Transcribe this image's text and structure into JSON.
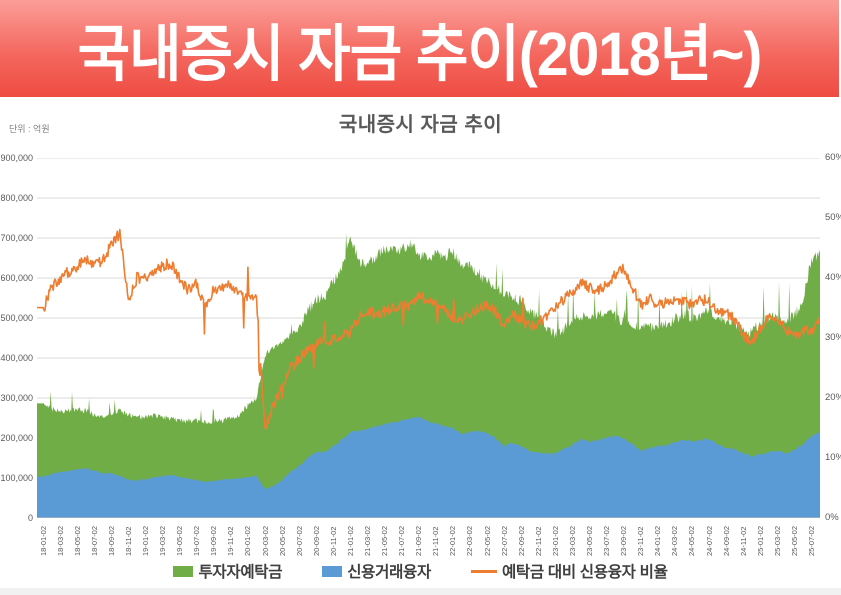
{
  "banner": {
    "title": "국내증시 자금 추이(2018년~)"
  },
  "chart": {
    "title": "국내증시 자금 추이",
    "unit_label": "단위 : 억원"
  },
  "colors": {
    "deposit_green": "#70AD47",
    "loan_blue": "#5B9BD5",
    "ratio_orange": "#ED7D31",
    "gridline": "#D9D9D9",
    "axis_line": "#BFBFBF",
    "banner_red_top": "#FB9E98",
    "banner_red_bottom": "#EE4C42"
  },
  "legend": {
    "items": [
      {
        "label": "투자자예탁금",
        "marker": "square",
        "color": "#70AD47"
      },
      {
        "label": "신용거래융자",
        "marker": "square",
        "color": "#5B9BD5"
      },
      {
        "label": "예탁금 대비 신용융자 비율",
        "marker": "line",
        "color": "#ED7D31"
      }
    ]
  },
  "chart_data": {
    "type": "area",
    "note": "daily stacked-look area chart approximated by monthly anchor values; values in 억원 (left axis) and % (right axis)",
    "x_monthly_labels_start": "2018-01",
    "x_monthly_labels_end": "2025-08",
    "left_axis": {
      "min": 0,
      "max": 900000,
      "step": 100000,
      "ticks": [
        "0",
        "100,000",
        "200,000",
        "300,000",
        "400,000",
        "500,000",
        "600,000",
        "700,000",
        "800,000",
        "900,000"
      ]
    },
    "right_axis": {
      "min": 0,
      "max": 60,
      "step": 10,
      "ticks": [
        "0%",
        "10%",
        "20%",
        "30%",
        "40%",
        "50%",
        "60%"
      ]
    },
    "x_ticks": [
      "18-01-02",
      "18-03-02",
      "18-05-02",
      "18-07-02",
      "18-09-02",
      "18-11-02",
      "19-01-02",
      "19-03-02",
      "19-05-02",
      "19-07-02",
      "19-09-02",
      "19-11-02",
      "20-01-02",
      "20-03-02",
      "20-05-02",
      "20-07-02",
      "20-09-02",
      "20-11-02",
      "21-01-02",
      "21-03-02",
      "21-05-02",
      "21-07-02",
      "21-09-02",
      "21-11-02",
      "22-01-02",
      "22-03-02",
      "22-05-02",
      "22-07-02",
      "22-09-02",
      "22-11-02",
      "23-01-02",
      "23-03-02",
      "23-05-02",
      "23-07-02",
      "23-09-02",
      "23-11-02",
      "24-01-02",
      "24-03-02",
      "24-05-02",
      "24-07-02",
      "24-09-02",
      "24-11-02",
      "25-01-02",
      "25-03-02",
      "25-05-02",
      "25-07-02"
    ],
    "series": [
      {
        "name": "투자자예탁금",
        "type": "area",
        "axis": "left",
        "color": "#70AD47",
        "values": [
          285000,
          272000,
          268000,
          268000,
          273000,
          268000,
          258000,
          254000,
          263000,
          268000,
          258000,
          252000,
          253000,
          258000,
          253000,
          248000,
          244000,
          243000,
          244000,
          238000,
          243000,
          244000,
          249000,
          258000,
          283000,
          298000,
          408000,
          428000,
          438000,
          458000,
          472000,
          518000,
          548000,
          553000,
          593000,
          628000,
          698000,
          643000,
          633000,
          658000,
          668000,
          678000,
          673000,
          688000,
          658000,
          648000,
          663000,
          653000,
          668000,
          628000,
          628000,
          613000,
          588000,
          578000,
          558000,
          553000,
          543000,
          518000,
          503000,
          478000,
          458000,
          473000,
          488000,
          508000,
          498000,
          508000,
          513000,
          503000,
          493000,
          478000,
          475000,
          478000,
          480000,
          488000,
          498000,
          508000,
          503000,
          508000,
          523000,
          503000,
          493000,
          488000,
          468000,
          465000,
          487000,
          498000,
          503000,
          494000,
          505000,
          545000,
          648000,
          662000
        ]
      },
      {
        "name": "신용거래융자",
        "type": "area",
        "axis": "left",
        "color": "#5B9BD5",
        "values": [
          104000,
          110000,
          115000,
          118000,
          122000,
          125000,
          118000,
          112000,
          112000,
          105000,
          95000,
          94000,
          97000,
          102000,
          105000,
          107000,
          103000,
          98000,
          95000,
          90000,
          93000,
          95000,
          97000,
          99000,
          102000,
          105000,
          72000,
          80000,
          95000,
          115000,
          130000,
          152000,
          165000,
          165000,
          180000,
          195000,
          215000,
          218000,
          222000,
          230000,
          235000,
          240000,
          244000,
          250000,
          252000,
          242000,
          238000,
          230000,
          225000,
          210000,
          215000,
          218000,
          212000,
          200000,
          180000,
          188000,
          180000,
          168000,
          165000,
          162000,
          162000,
          172000,
          183000,
          198000,
          192000,
          195000,
          200000,
          205000,
          200000,
          185000,
          168000,
          175000,
          179000,
          183000,
          190000,
          195000,
          192000,
          195000,
          198000,
          185000,
          175000,
          172000,
          162000,
          155000,
          158000,
          165000,
          170000,
          162000,
          170000,
          185000,
          205000,
          215000
        ]
      },
      {
        "name": "예탁금 대비 신용융자 비율",
        "type": "line",
        "axis": "right",
        "color": "#ED7D31",
        "values": [
          34.5,
          38.5,
          40,
          41,
          42,
          43,
          42,
          43,
          45.5,
          47.5,
          36,
          40,
          40,
          41,
          42,
          42.5,
          40,
          38,
          39,
          35,
          38,
          38.5,
          39,
          37,
          37,
          36.5,
          14.5,
          19,
          22,
          25,
          26.5,
          28,
          29,
          29.5,
          30,
          30.5,
          31,
          33.5,
          34.5,
          34,
          34.5,
          35,
          35.5,
          35.5,
          37,
          36.5,
          35.5,
          35,
          33.5,
          33,
          34,
          35,
          35.5,
          34.5,
          32,
          34,
          33,
          32,
          32.5,
          33.5,
          35,
          36.5,
          37.5,
          39,
          38.5,
          38,
          39,
          40.5,
          41.5,
          38.5,
          35.5,
          36.5,
          35.5,
          36,
          36.5,
          36,
          35.5,
          36.5,
          36,
          34,
          34.5,
          33,
          30.5,
          29.5,
          31.5,
          33.5,
          32.5,
          31.5,
          30,
          31.5,
          31,
          33
        ]
      }
    ]
  },
  "render": {
    "dep_jitter": 7000,
    "loan_jitter": 1800,
    "ratio_jitter": 0.9,
    "needle_prob": 0.035,
    "seed": 20180102
  }
}
